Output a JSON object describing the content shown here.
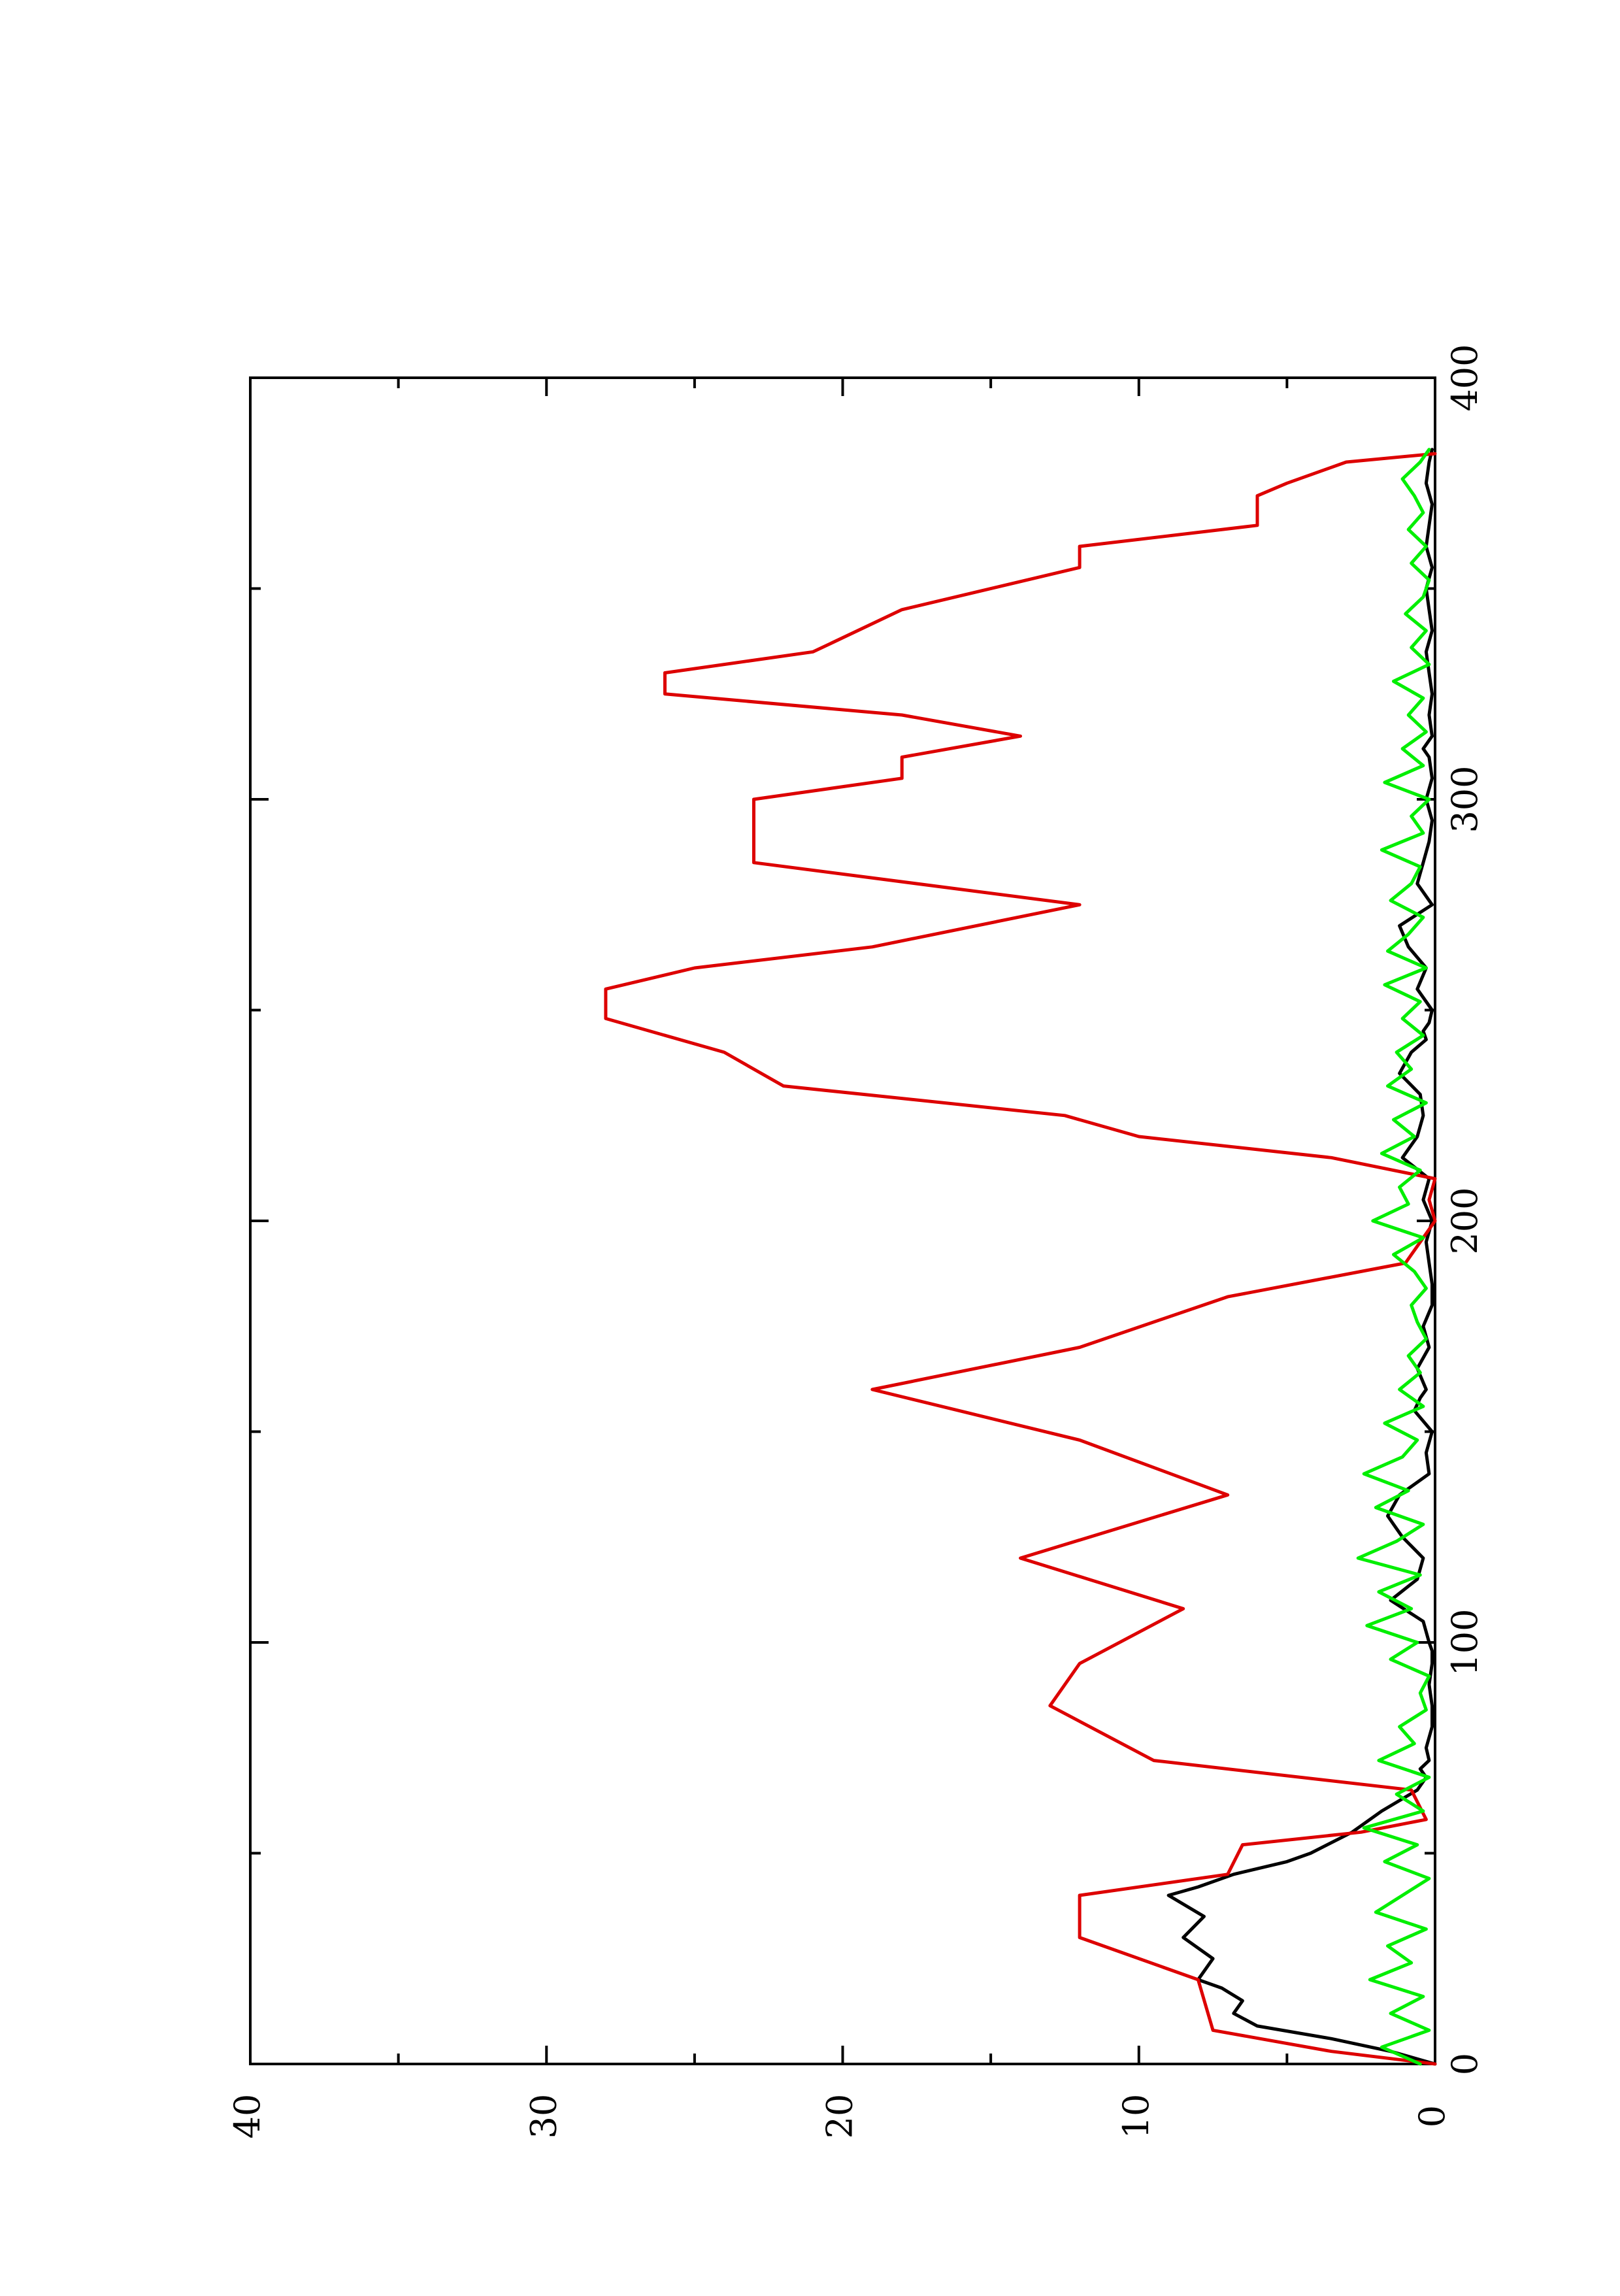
{
  "chart_data": {
    "type": "line",
    "orientation": "rotated-90-ccw",
    "title": "",
    "xlabel": "",
    "ylabel": "",
    "xlim": [
      0,
      400
    ],
    "ylim": [
      0,
      40
    ],
    "x_ticks": [
      0,
      100,
      200,
      300,
      400
    ],
    "y_ticks": [
      0,
      10,
      20,
      30,
      40
    ],
    "x_minor_ticks": [
      50,
      150,
      250,
      350
    ],
    "y_minor_ticks": [
      5,
      15,
      25,
      35
    ],
    "grid": false,
    "legend": "none",
    "series": [
      {
        "color": "#000000",
        "x": [
          0,
          3,
          6,
          9,
          12,
          15,
          18,
          20,
          25,
          30,
          35,
          40,
          42,
          45,
          48,
          50,
          55,
          60,
          65,
          68,
          70,
          72,
          75,
          80,
          85,
          90,
          95,
          98,
          100,
          105,
          110,
          115,
          120,
          125,
          130,
          135,
          140,
          145,
          150,
          155,
          158,
          160,
          165,
          170,
          175,
          180,
          185,
          190,
          195,
          200,
          205,
          210,
          215,
          220,
          225,
          230,
          235,
          240,
          243,
          245,
          247,
          250,
          255,
          260,
          265,
          270,
          275,
          280,
          285,
          290,
          295,
          300,
          305,
          310,
          312,
          315,
          320,
          325,
          330,
          335,
          340,
          345,
          350,
          355,
          360,
          365,
          370,
          375,
          380,
          383
        ],
        "y": [
          0,
          1.5,
          3.5,
          6,
          6.8,
          6.5,
          7.2,
          8,
          7.5,
          8.5,
          7.8,
          9,
          8,
          6.8,
          5,
          4.2,
          2.8,
          1.8,
          0.6,
          0.3,
          0.5,
          0.2,
          0.3,
          0.1,
          0.1,
          0.2,
          0.1,
          0.1,
          0.2,
          0.4,
          1.5,
          0.6,
          0.4,
          1.1,
          1.6,
          1.2,
          0.2,
          0.3,
          0.1,
          0.7,
          0.5,
          0.3,
          0.6,
          0.2,
          0.4,
          0.1,
          0.1,
          0.2,
          0.3,
          0.1,
          0.4,
          0.2,
          1.1,
          0.6,
          0.4,
          0.5,
          1.2,
          0.8,
          0.3,
          0.4,
          0.2,
          0.1,
          0.6,
          0.3,
          0.9,
          1.2,
          0.1,
          0.6,
          0.4,
          0.2,
          0.1,
          0.3,
          0.1,
          0.2,
          0.4,
          0.1,
          0.2,
          0.1,
          0.2,
          0.3,
          0.1,
          0.2,
          0.3,
          0.1,
          0.3,
          0.2,
          0.1,
          0.3,
          0.2,
          0.1
        ]
      },
      {
        "color": "#dd0000",
        "x": [
          0,
          3,
          8,
          20,
          30,
          40,
          45,
          52,
          55,
          58,
          65,
          72,
          85,
          95,
          108,
          120,
          135,
          148,
          160,
          170,
          182,
          190,
          200,
          205,
          210,
          215,
          220,
          225,
          232,
          240,
          248,
          255,
          260,
          265,
          275,
          285,
          300,
          305,
          310,
          315,
          320,
          325,
          330,
          335,
          345,
          355,
          360,
          365,
          372,
          375,
          380,
          382
        ],
        "y": [
          0,
          3.5,
          7.5,
          8,
          12,
          12,
          7,
          6.5,
          2.5,
          0.3,
          0.8,
          9.5,
          13,
          12,
          8.5,
          14,
          7,
          12,
          19,
          12,
          7,
          1,
          0,
          0.2,
          0,
          3.5,
          10,
          12.5,
          22,
          24,
          28,
          28,
          25,
          19,
          12,
          23,
          23,
          18,
          18,
          14,
          18,
          26,
          26,
          21,
          18,
          12,
          12,
          6,
          6,
          5,
          3,
          0
        ]
      },
      {
        "color": "#00ee00",
        "x": [
          0,
          4,
          8,
          12,
          16,
          20,
          24,
          28,
          32,
          36,
          40,
          44,
          48,
          52,
          56,
          60,
          64,
          68,
          72,
          76,
          80,
          84,
          88,
          92,
          96,
          100,
          104,
          108,
          112,
          116,
          120,
          124,
          128,
          132,
          136,
          140,
          144,
          148,
          152,
          156,
          160,
          164,
          168,
          172,
          176,
          180,
          184,
          188,
          192,
          196,
          200,
          204,
          208,
          212,
          216,
          220,
          224,
          228,
          232,
          236,
          240,
          244,
          248,
          252,
          256,
          260,
          264,
          268,
          272,
          276,
          280,
          284,
          288,
          292,
          296,
          300,
          304,
          308,
          312,
          316,
          320,
          324,
          328,
          332,
          336,
          340,
          344,
          348,
          352,
          356,
          360,
          364,
          368,
          372,
          376,
          380,
          383
        ],
        "y": [
          0.5,
          1.8,
          0.2,
          1.5,
          0.4,
          2.2,
          0.8,
          1.6,
          0.3,
          2.0,
          1.1,
          0.2,
          1.7,
          0.6,
          2.4,
          0.4,
          1.3,
          0.2,
          1.9,
          0.7,
          1.2,
          0.3,
          0.5,
          0.2,
          1.5,
          0.6,
          2.3,
          0.8,
          1.9,
          0.5,
          2.6,
          1.3,
          0.4,
          2.0,
          0.9,
          2.4,
          1.1,
          0.6,
          1.7,
          0.4,
          1.2,
          0.5,
          0.9,
          0.3,
          0.6,
          0.8,
          0.3,
          0.7,
          1.4,
          0.4,
          2.1,
          0.9,
          1.2,
          0.5,
          1.8,
          0.7,
          1.4,
          0.3,
          1.6,
          0.8,
          1.3,
          0.4,
          1.1,
          0.5,
          1.7,
          0.3,
          1.6,
          0.9,
          0.4,
          1.5,
          0.8,
          0.5,
          1.8,
          0.4,
          0.8,
          0.2,
          1.7,
          0.4,
          1.1,
          0.3,
          0.9,
          0.4,
          1.4,
          0.2,
          0.8,
          0.3,
          1.0,
          0.4,
          0.2,
          0.8,
          0.3,
          0.9,
          0.4,
          0.7,
          1.1,
          0.5,
          0.2
        ]
      }
    ]
  }
}
